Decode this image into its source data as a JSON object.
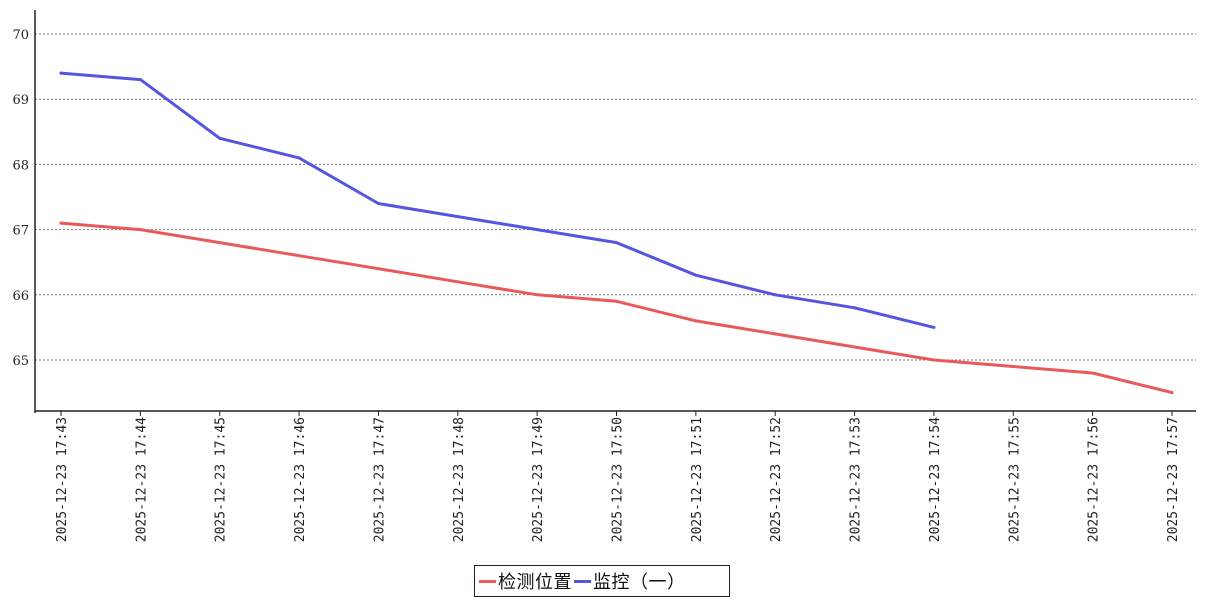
{
  "chart_data": {
    "type": "line",
    "title": "",
    "xlabel": "",
    "ylabel": "",
    "categories": [
      "2025-12-23 17:43",
      "2025-12-23 17:44",
      "2025-12-23 17:45",
      "2025-12-23 17:46",
      "2025-12-23 17:47",
      "2025-12-23 17:48",
      "2025-12-23 17:49",
      "2025-12-23 17:50",
      "2025-12-23 17:51",
      "2025-12-23 17:52",
      "2025-12-23 17:53",
      "2025-12-23 17:54",
      "2025-12-23 17:55",
      "2025-12-23 17:56",
      "2025-12-23 17:57"
    ],
    "yticks": [
      65,
      66,
      67,
      68,
      69,
      70
    ],
    "ylim": [
      64.2,
      70.35
    ],
    "grid": "horizontal dotted",
    "legend_position": "bottom-center",
    "series": [
      {
        "name": "检测位置",
        "color": "#e85a5a",
        "values": [
          67.1,
          67.0,
          66.8,
          66.6,
          66.4,
          66.2,
          66.0,
          65.9,
          65.6,
          65.4,
          65.2,
          65.0,
          64.9,
          64.8,
          64.5
        ]
      },
      {
        "name": "监控（一）",
        "color": "#5555e0",
        "values": [
          69.4,
          69.3,
          68.4,
          68.1,
          67.4,
          67.2,
          67.0,
          66.8,
          66.3,
          66.0,
          65.8,
          65.5,
          null,
          null,
          null
        ]
      }
    ]
  }
}
